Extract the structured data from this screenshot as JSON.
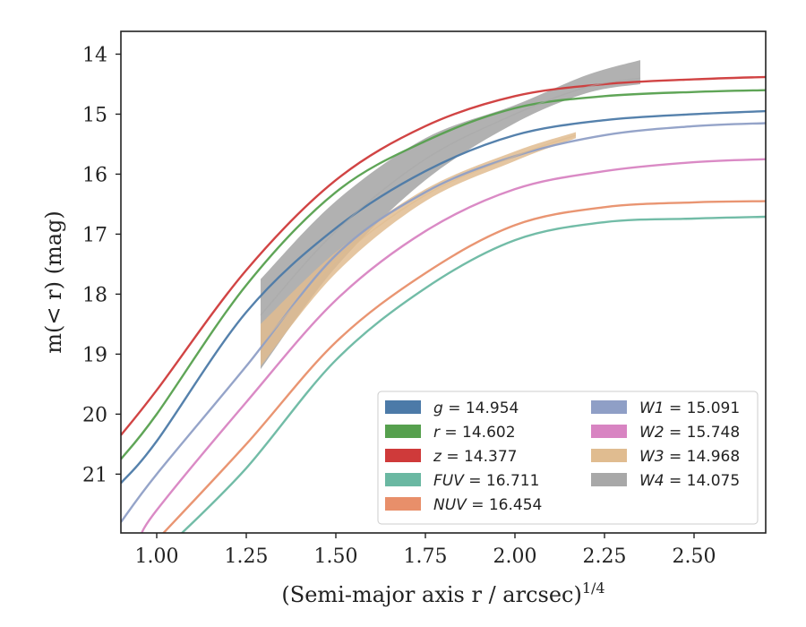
{
  "chart_data": {
    "type": "line",
    "xlabel": "(Semi-major axis r / arcsec)",
    "xlabel_sup": "1/4",
    "ylabel": "m(< r) (mag)",
    "xlim": [
      0.9,
      2.7
    ],
    "ylim": [
      21.98,
      13.62
    ],
    "y_inverted": true,
    "x_ticks": [
      1.0,
      1.25,
      1.5,
      1.75,
      2.0,
      2.25,
      2.5
    ],
    "x_tick_labels": [
      "1.00",
      "1.25",
      "1.50",
      "1.75",
      "2.00",
      "2.25",
      "2.50"
    ],
    "y_ticks": [
      14,
      15,
      16,
      17,
      18,
      19,
      20,
      21
    ],
    "y_tick_labels": [
      "14",
      "15",
      "16",
      "17",
      "18",
      "19",
      "20",
      "21"
    ],
    "grid": false,
    "legend_position": "lower-right",
    "legend_columns": 2,
    "series": [
      {
        "name": "g = 14.954",
        "band": "g",
        "total_mag": 14.954,
        "color": "#4c7aa8",
        "x": [
          0.9,
          1.0,
          1.25,
          1.5,
          1.75,
          2.0,
          2.25,
          2.5,
          2.7
        ],
        "y": [
          21.15,
          20.45,
          18.3,
          16.9,
          15.95,
          15.35,
          15.1,
          15.0,
          14.95
        ]
      },
      {
        "name": "r = 14.602",
        "band": "r",
        "total_mag": 14.602,
        "color": "#56a04e",
        "x": [
          0.9,
          1.0,
          1.25,
          1.5,
          1.75,
          2.0,
          2.25,
          2.5,
          2.7
        ],
        "y": [
          20.75,
          20.0,
          17.85,
          16.3,
          15.45,
          14.9,
          14.7,
          14.63,
          14.6
        ]
      },
      {
        "name": "z = 14.377",
        "band": "z",
        "total_mag": 14.377,
        "color": "#cf3a3a",
        "x": [
          0.9,
          1.0,
          1.25,
          1.5,
          1.75,
          2.0,
          2.25,
          2.5,
          2.7
        ],
        "y": [
          20.35,
          19.6,
          17.6,
          16.1,
          15.2,
          14.7,
          14.5,
          14.42,
          14.38
        ]
      },
      {
        "name": "FUV = 16.711",
        "band": "FUV",
        "total_mag": 16.711,
        "color": "#6ab8a2",
        "x": [
          1.05,
          1.25,
          1.5,
          1.75,
          2.0,
          2.25,
          2.5,
          2.7
        ],
        "y": [
          22.1,
          20.9,
          19.1,
          17.9,
          17.1,
          16.8,
          16.74,
          16.71
        ]
      },
      {
        "name": "NUV = 16.454",
        "band": "NUV",
        "total_mag": 16.454,
        "color": "#e88f6a",
        "x": [
          1.0,
          1.25,
          1.5,
          1.75,
          2.0,
          2.25,
          2.5,
          2.7
        ],
        "y": [
          22.1,
          20.5,
          18.8,
          17.65,
          16.85,
          16.55,
          16.47,
          16.45
        ]
      },
      {
        "name": "W1 = 15.091",
        "band": "W1",
        "total_mag": 15.091,
        "color": "#8f9fc6",
        "x": [
          0.9,
          1.0,
          1.25,
          1.5,
          1.75,
          2.0,
          2.25,
          2.5,
          2.7
        ],
        "y": [
          21.8,
          21.0,
          19.2,
          17.35,
          16.3,
          15.7,
          15.35,
          15.2,
          15.15
        ]
      },
      {
        "name": "W2 = 15.748",
        "band": "W2",
        "total_mag": 15.748,
        "color": "#d884c2",
        "x": [
          0.95,
          1.0,
          1.25,
          1.5,
          1.75,
          2.0,
          2.25,
          2.5,
          2.7
        ],
        "y": [
          22.1,
          21.6,
          19.8,
          18.1,
          16.95,
          16.25,
          15.95,
          15.8,
          15.75
        ]
      },
      {
        "name": "W3 = 14.968",
        "band": "W3",
        "total_mag": 14.968,
        "color": "#e0bc90",
        "x": [
          1.29,
          1.5,
          1.75,
          2.0,
          2.17
        ],
        "y": [
          18.85,
          17.45,
          16.35,
          15.7,
          15.35
        ],
        "band_lower": [
          19.2,
          17.65,
          16.45,
          15.78,
          15.4
        ],
        "band_upper": [
          18.5,
          17.3,
          16.25,
          15.62,
          15.3
        ]
      },
      {
        "name": "W4 = 14.075",
        "band": "W4",
        "total_mag": 14.075,
        "color": "#a8a8a8",
        "x": [
          1.29,
          1.5,
          1.75,
          2.0,
          2.2,
          2.35
        ],
        "y": [
          18.35,
          16.95,
          15.75,
          15.0,
          14.55,
          14.4
        ],
        "band_lower": [
          19.25,
          17.55,
          16.1,
          15.15,
          14.65,
          14.5
        ],
        "band_upper": [
          17.75,
          16.45,
          15.4,
          14.85,
          14.35,
          14.1
        ]
      }
    ]
  }
}
